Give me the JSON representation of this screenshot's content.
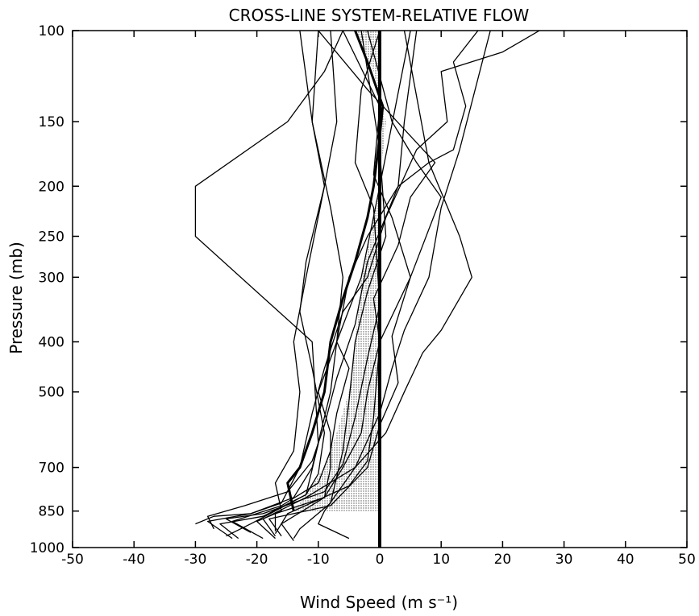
{
  "chart_data": {
    "type": "line",
    "title": "CROSS-LINE SYSTEM-RELATIVE FLOW",
    "xlabel": "Wind Speed (m s⁻¹)",
    "ylabel": "Pressure (mb)",
    "xlim": [
      -50,
      50
    ],
    "ylim": [
      1000,
      100
    ],
    "y_scale": "log",
    "x_ticks": [
      -50,
      -40,
      -30,
      -20,
      -10,
      0,
      10,
      20,
      30,
      40,
      50
    ],
    "y_ticks": [
      100,
      150,
      200,
      250,
      300,
      400,
      500,
      700,
      850,
      1000
    ],
    "grid": false,
    "legend": "none",
    "shaded_area": {
      "description_x": "shaded region between mean profile and zero line",
      "points": [
        {
          "p": 850,
          "x": -14
        },
        {
          "p": 700,
          "x": -9
        },
        {
          "p": 600,
          "x": -7
        },
        {
          "p": 500,
          "x": -5
        },
        {
          "p": 400,
          "x": -4
        },
        {
          "p": 300,
          "x": -3
        },
        {
          "p": 250,
          "x": -1.5
        },
        {
          "p": 200,
          "x": 0
        },
        {
          "p": 150,
          "x": 1
        },
        {
          "p": 120,
          "x": -1
        },
        {
          "p": 100,
          "x": -4
        }
      ]
    },
    "mean_profile": {
      "x": [
        -14,
        -15,
        -13,
        -11,
        -9,
        -8,
        -6,
        -4,
        -2,
        -1,
        0,
        0.5,
        -2,
        -4
      ],
      "p": [
        850,
        750,
        700,
        600,
        500,
        400,
        330,
        280,
        230,
        200,
        160,
        140,
        115,
        100
      ]
    },
    "series": [
      {
        "x": [
          -24,
          -28,
          -21,
          -14,
          -11,
          -8,
          -7,
          -5,
          -2,
          3,
          8,
          12,
          14,
          12,
          16
        ],
        "p": [
          960,
          890,
          860,
          800,
          700,
          500,
          400,
          300,
          250,
          200,
          180,
          170,
          140,
          115,
          100
        ]
      },
      {
        "x": [
          -30,
          -27,
          -21,
          -16,
          -13,
          -11,
          -9,
          -6,
          -2,
          1,
          6,
          11,
          10,
          20,
          26
        ],
        "p": [
          900,
          870,
          860,
          820,
          700,
          550,
          450,
          350,
          300,
          230,
          170,
          150,
          120,
          110,
          100
        ]
      },
      {
        "x": [
          -23,
          -26,
          -19,
          -12,
          -10,
          -9,
          -11,
          -13,
          -12,
          -9,
          -11,
          -10
        ],
        "p": [
          960,
          900,
          870,
          790,
          720,
          600,
          450,
          350,
          280,
          200,
          150,
          100
        ]
      },
      {
        "x": [
          -21,
          -25,
          -19,
          -9,
          -6,
          -4,
          -2,
          0,
          -1,
          -4,
          -3,
          0
        ],
        "p": [
          935,
          880,
          860,
          780,
          690,
          560,
          430,
          340,
          220,
          180,
          130,
          100
        ]
      },
      {
        "x": [
          -19,
          -24,
          -16,
          -10,
          -8,
          -7,
          -5,
          -7,
          -3,
          0,
          5
        ],
        "p": [
          960,
          890,
          830,
          750,
          650,
          550,
          450,
          400,
          300,
          200,
          100
        ]
      },
      {
        "x": [
          -17,
          -20,
          -16,
          -17,
          -14,
          -13,
          -14,
          -12,
          -9,
          -7,
          -8
        ],
        "p": [
          960,
          890,
          850,
          750,
          650,
          500,
          400,
          300,
          200,
          150,
          100
        ]
      },
      {
        "x": [
          -5,
          -10,
          -9,
          -4,
          0,
          2,
          4,
          8,
          10,
          13,
          18
        ],
        "p": [
          960,
          900,
          850,
          700,
          550,
          450,
          380,
          300,
          220,
          170,
          100
        ]
      },
      {
        "x": [
          -14,
          -16,
          -9,
          -6,
          -3,
          -2,
          0,
          5,
          10,
          6,
          2,
          -2
        ],
        "p": [
          970,
          900,
          800,
          700,
          600,
          500,
          400,
          300,
          210,
          180,
          150,
          100
        ]
      },
      {
        "x": [
          -17,
          -19,
          -12,
          -4,
          1,
          4,
          7,
          10,
          15,
          13,
          8,
          4
        ],
        "p": [
          950,
          880,
          800,
          700,
          600,
          500,
          420,
          380,
          300,
          250,
          180,
          100
        ]
      },
      {
        "x": [
          -16,
          -18,
          -8,
          -2,
          0,
          3,
          2,
          5,
          2,
          -1,
          0,
          -6
        ],
        "p": [
          950,
          880,
          830,
          700,
          580,
          480,
          390,
          300,
          230,
          190,
          140,
          100
        ]
      },
      {
        "x": [
          -17,
          -15,
          -5,
          -2,
          -1,
          0,
          -1,
          3,
          5,
          9,
          -2,
          -10
        ],
        "p": [
          940,
          860,
          760,
          680,
          560,
          400,
          330,
          260,
          210,
          180,
          130,
          100
        ]
      },
      {
        "x": [
          -17,
          -17,
          -9,
          -8,
          -8,
          -10,
          -7,
          -6,
          -8,
          -11,
          -13
        ],
        "p": [
          930,
          860,
          800,
          700,
          600,
          500,
          400,
          300,
          220,
          150,
          100
        ]
      },
      {
        "x": [
          -14,
          -13,
          -8,
          -6,
          -5,
          -4,
          -2,
          1,
          0,
          -3
        ],
        "p": [
          960,
          920,
          820,
          650,
          520,
          400,
          320,
          250,
          170,
          100
        ]
      },
      {
        "x": [
          -27,
          -28,
          -22,
          -15,
          -11,
          -9,
          -7,
          -4,
          -2,
          3,
          4,
          6
        ],
        "p": [
          920,
          870,
          830,
          780,
          680,
          580,
          470,
          370,
          280,
          200,
          150,
          100
        ]
      },
      {
        "x": [
          -25,
          -21,
          -12,
          -10,
          -11,
          -30,
          -30,
          -15,
          -9,
          -6
        ],
        "p": [
          950,
          900,
          790,
          630,
          400,
          250,
          200,
          150,
          120,
          100
        ]
      }
    ]
  }
}
